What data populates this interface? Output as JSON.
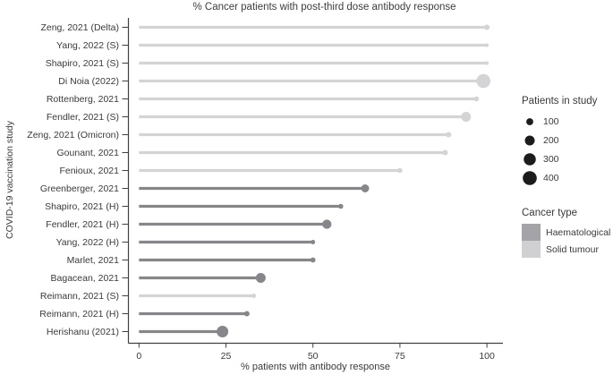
{
  "title": "% Cancer patients with post-third dose antibody response",
  "xlabel": "% patients with antibody response",
  "ylabel": "COVID-19 vaccination study",
  "colors": {
    "haematological": "#87878b",
    "solid_tumour": "#d4d4d6",
    "legend_swatch_haematological": "#a4a4a8",
    "legend_swatch_solid": "#d0d0d2",
    "legend_dot": "#1c1c1c",
    "axis": "#404040",
    "text": "#3a3a3a"
  },
  "legend_patients": {
    "title": "Patients in study",
    "sizes": [
      100,
      200,
      300,
      400
    ]
  },
  "legend_cancer": {
    "title": "Cancer type",
    "items": [
      {
        "label": "Haematological",
        "key": "haematological"
      },
      {
        "label": "Solid tumour",
        "key": "solid_tumour"
      }
    ]
  },
  "chart_data": {
    "type": "bar",
    "variant": "lollipop",
    "title": "% Cancer patients with post-third dose antibody response",
    "xlabel": "% patients with antibody response",
    "ylabel": "COVID-19 vaccination study",
    "xlim": [
      0,
      100
    ],
    "xticks": [
      0,
      25,
      50,
      75,
      100
    ],
    "grid": false,
    "legend_position": "right",
    "size_legend_values": [
      100,
      200,
      300,
      400
    ],
    "color_legend_items": [
      "Haematological",
      "Solid tumour"
    ],
    "rows": [
      {
        "study": "Zeng, 2021 (Delta)",
        "percent": 100,
        "patients": 60,
        "cancer_type": "Solid tumour"
      },
      {
        "study": "Yang, 2022 (S)",
        "percent": 100,
        "patients": 25,
        "cancer_type": "Solid tumour"
      },
      {
        "study": "Shapiro, 2021 (S)",
        "percent": 100,
        "patients": 25,
        "cancer_type": "Solid tumour"
      },
      {
        "study": "Di Noia (2022)",
        "percent": 99,
        "patients": 400,
        "cancer_type": "Solid tumour"
      },
      {
        "study": "Rottenberg, 2021",
        "percent": 97,
        "patients": 50,
        "cancer_type": "Solid tumour"
      },
      {
        "study": "Fendler, 2021 (S)",
        "percent": 94,
        "patients": 200,
        "cancer_type": "Solid tumour"
      },
      {
        "study": "Zeng, 2021 (Omicron)",
        "percent": 89,
        "patients": 60,
        "cancer_type": "Solid tumour"
      },
      {
        "study": "Gounant, 2021",
        "percent": 88,
        "patients": 60,
        "cancer_type": "Solid tumour"
      },
      {
        "study": "Fenioux, 2021",
        "percent": 75,
        "patients": 50,
        "cancer_type": "Solid tumour"
      },
      {
        "study": "Greenberger, 2021",
        "percent": 65,
        "patients": 130,
        "cancer_type": "Haematological"
      },
      {
        "study": "Shapiro, 2021 (H)",
        "percent": 58,
        "patients": 50,
        "cancer_type": "Haematological"
      },
      {
        "study": "Fendler, 2021 (H)",
        "percent": 54,
        "patients": 175,
        "cancer_type": "Haematological"
      },
      {
        "study": "Yang, 2022 (H)",
        "percent": 50,
        "patients": 40,
        "cancer_type": "Haematological"
      },
      {
        "study": "Marlet, 2021",
        "percent": 50,
        "patients": 55,
        "cancer_type": "Haematological"
      },
      {
        "study": "Bagacean, 2021",
        "percent": 35,
        "patients": 200,
        "cancer_type": "Haematological"
      },
      {
        "study": "Reimann, 2021 (S)",
        "percent": 33,
        "patients": 40,
        "cancer_type": "Solid tumour"
      },
      {
        "study": "Reimann, 2021 (H)",
        "percent": 31,
        "patients": 60,
        "cancer_type": "Haematological"
      },
      {
        "study": "Herishanu (2021)",
        "percent": 24,
        "patients": 280,
        "cancer_type": "Haematological"
      }
    ]
  }
}
